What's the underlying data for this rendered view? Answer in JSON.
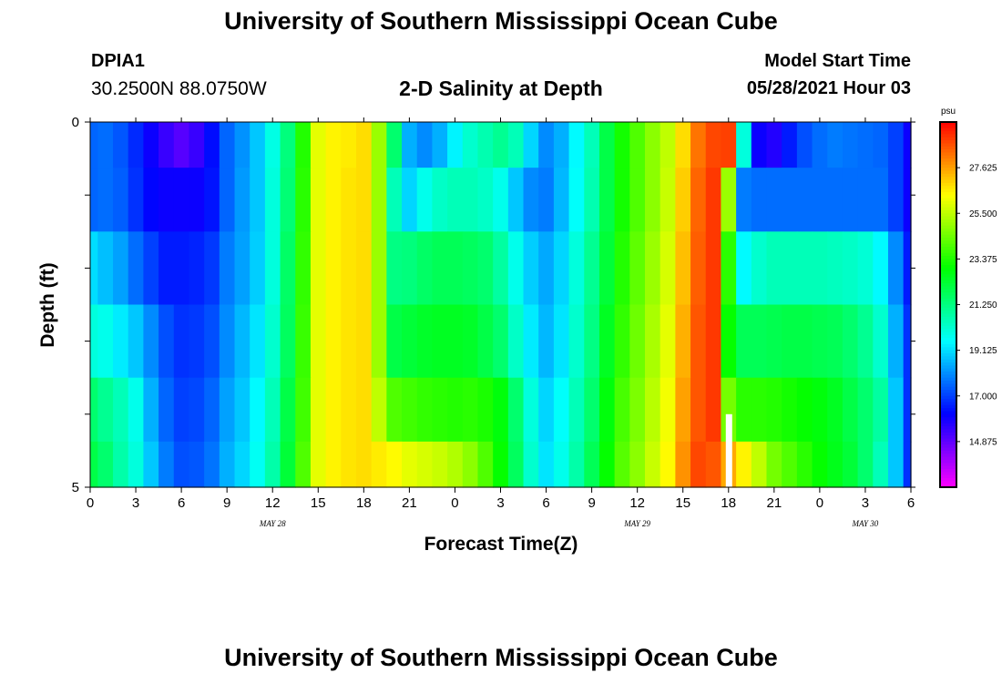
{
  "page": {
    "title_top": "University of Southern Mississippi Ocean Cube",
    "title_bottom": "University of Southern Mississippi Ocean Cube",
    "station": "DPIA1",
    "coords": "30.2500N  88.0750W",
    "plot_title": "2-D Salinity at Depth",
    "model_start_label": "Model Start Time",
    "model_start_value": "05/28/2021 Hour 03"
  },
  "chart_data": {
    "type": "heatmap",
    "title": "2-D Salinity at Depth",
    "xlabel": "Forecast Time(Z)",
    "ylabel": "Depth (ft)",
    "x_tick_labels": [
      "0",
      "3",
      "6",
      "9",
      "12",
      "15",
      "18",
      "21",
      "0",
      "3",
      "6",
      "9",
      "12",
      "15",
      "18",
      "21",
      "0",
      "3",
      "6"
    ],
    "x_range_hours": [
      0,
      54
    ],
    "date_labels": [
      {
        "text": "MAY 28",
        "hour": 12
      },
      {
        "text": "MAY 29",
        "hour": 36
      },
      {
        "text": "MAY 30",
        "hour": 51
      }
    ],
    "y_tick_labels": [
      "0",
      "5"
    ],
    "y_range": [
      0,
      5
    ],
    "depth_levels": [
      0.25,
      1.0,
      2.0,
      3.0,
      4.0,
      4.75
    ],
    "colorbar": {
      "unit": "psu",
      "min": 12.75,
      "max": 29.75,
      "tick_labels": [
        "27.625",
        "25.500",
        "23.375",
        "21.250",
        "19.125",
        "17.000",
        "14.875"
      ],
      "tick_values": [
        27.625,
        25.5,
        23.375,
        21.25,
        19.125,
        17.0,
        14.875
      ]
    },
    "time_hours": [
      0,
      1,
      2,
      3,
      4,
      5,
      6,
      7,
      8,
      9,
      10,
      11,
      12,
      13,
      14,
      15,
      16,
      17,
      18,
      19,
      20,
      21,
      22,
      23,
      24,
      25,
      26,
      27,
      28,
      29,
      30,
      31,
      32,
      33,
      34,
      35,
      36,
      37,
      38,
      39,
      40,
      41,
      42,
      43,
      44,
      45,
      46,
      47,
      48,
      49,
      50,
      51,
      52,
      53,
      54
    ],
    "salinity_psu": [
      [
        17.5,
        17.6,
        17.3,
        16.7,
        16.0,
        15.4,
        15.0,
        15.4,
        16.3,
        17.5,
        18.1,
        18.8,
        19.9,
        21.3,
        23.4,
        26.0,
        26.5,
        26.6,
        26.8,
        25.0,
        21.5,
        18.5,
        18.0,
        18.5,
        19.4,
        20.2,
        20.6,
        21.0,
        20.5,
        19.0,
        18.0,
        18.5,
        19.5,
        20.5,
        22.0,
        23.2,
        24.0,
        24.8,
        25.5,
        26.8,
        28.2,
        28.8,
        28.9,
        20.0,
        16.0,
        15.7,
        16.5,
        17.2,
        17.6,
        17.8,
        17.7,
        17.6,
        17.5,
        17.0,
        16.0
      ],
      [
        17.5,
        17.6,
        17.4,
        16.8,
        16.2,
        16.0,
        16.0,
        16.0,
        16.4,
        17.5,
        18.2,
        18.8,
        20.0,
        21.4,
        23.5,
        26.0,
        26.5,
        26.7,
        26.8,
        25.0,
        20.5,
        19.0,
        19.8,
        20.3,
        20.5,
        20.5,
        20.3,
        19.8,
        18.8,
        18.0,
        17.8,
        18.6,
        19.6,
        20.6,
        22.0,
        23.2,
        24.0,
        24.8,
        25.6,
        27.0,
        28.4,
        29.0,
        25.0,
        17.8,
        17.6,
        17.6,
        17.6,
        17.6,
        17.6,
        17.6,
        17.6,
        17.6,
        17.6,
        17.0,
        16.0
      ],
      [
        19.1,
        18.7,
        18.3,
        17.6,
        17.0,
        16.5,
        16.5,
        16.6,
        16.9,
        17.8,
        18.3,
        18.9,
        20.0,
        21.6,
        23.6,
        26.0,
        26.5,
        26.7,
        26.8,
        25.0,
        21.2,
        21.3,
        21.6,
        21.8,
        21.8,
        21.7,
        21.5,
        20.8,
        19.8,
        18.9,
        18.4,
        19.0,
        20.0,
        21.0,
        22.2,
        23.4,
        24.2,
        25.0,
        25.8,
        27.2,
        28.5,
        29.0,
        23.5,
        19.5,
        20.2,
        20.5,
        20.5,
        20.5,
        20.5,
        20.4,
        20.3,
        20.1,
        19.5,
        18.0,
        16.5
      ],
      [
        20.0,
        19.8,
        19.3,
        18.8,
        18.0,
        17.2,
        16.8,
        16.9,
        17.2,
        18.0,
        18.6,
        19.2,
        20.2,
        21.7,
        23.7,
        26.0,
        26.5,
        26.7,
        26.8,
        25.0,
        22.0,
        22.2,
        22.4,
        22.5,
        22.5,
        22.4,
        22.0,
        21.5,
        20.3,
        19.3,
        18.6,
        19.2,
        20.2,
        21.2,
        22.5,
        23.6,
        24.4,
        25.2,
        26.0,
        27.4,
        28.6,
        29.0,
        23.0,
        21.8,
        21.8,
        21.9,
        22.0,
        22.0,
        21.9,
        21.8,
        21.5,
        21.0,
        20.2,
        18.5,
        16.8
      ],
      [
        21.5,
        21.0,
        20.5,
        19.8,
        18.5,
        17.5,
        17.0,
        17.1,
        17.5,
        18.3,
        18.8,
        19.5,
        20.5,
        22.0,
        23.8,
        26.0,
        26.5,
        26.7,
        26.8,
        25.5,
        24.0,
        23.8,
        23.6,
        23.5,
        23.4,
        23.5,
        23.3,
        22.8,
        21.5,
        20.0,
        19.0,
        19.6,
        20.5,
        21.5,
        22.8,
        23.9,
        24.6,
        25.4,
        26.2,
        27.6,
        28.6,
        29.0,
        24.5,
        23.5,
        23.5,
        23.4,
        23.2,
        23.0,
        22.8,
        22.5,
        22.0,
        21.5,
        20.8,
        18.8,
        16.8
      ],
      [
        22.0,
        21.5,
        20.7,
        20.0,
        18.8,
        17.8,
        17.2,
        17.3,
        17.7,
        18.5,
        19.0,
        19.7,
        20.7,
        22.2,
        24.0,
        26.0,
        26.5,
        26.7,
        26.8,
        26.6,
        26.4,
        26.0,
        25.8,
        25.6,
        25.3,
        24.8,
        24.0,
        23.0,
        21.7,
        20.2,
        19.2,
        19.8,
        20.7,
        21.8,
        23.0,
        24.1,
        24.8,
        25.6,
        26.4,
        27.8,
        28.8,
        28.6,
        27.5,
        26.5,
        25.5,
        24.5,
        24.0,
        23.5,
        23.0,
        22.6,
        22.2,
        21.5,
        20.5,
        18.8,
        16.8
      ]
    ],
    "missing_value_marker": {
      "hour": 42,
      "depth_ft": [
        4.0,
        5.0
      ]
    }
  }
}
